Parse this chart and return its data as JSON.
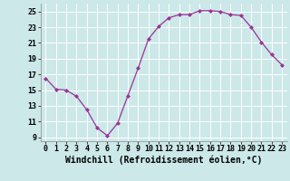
{
  "x": [
    0,
    1,
    2,
    3,
    4,
    5,
    6,
    7,
    8,
    9,
    10,
    11,
    12,
    13,
    14,
    15,
    16,
    17,
    18,
    19,
    20,
    21,
    22,
    23
  ],
  "y": [
    16.5,
    15.1,
    15.0,
    14.2,
    12.5,
    10.2,
    9.2,
    10.8,
    14.3,
    17.8,
    21.5,
    23.1,
    24.2,
    24.6,
    24.6,
    25.1,
    25.1,
    25.0,
    24.6,
    24.5,
    23.0,
    21.1,
    19.5,
    18.2
  ],
  "xlabel": "Windchill (Refroidissement éolien,°C)",
  "ylim": [
    8.5,
    26.0
  ],
  "xlim": [
    -0.5,
    23.5
  ],
  "yticks": [
    9,
    11,
    13,
    15,
    17,
    19,
    21,
    23,
    25
  ],
  "xticks": [
    0,
    1,
    2,
    3,
    4,
    5,
    6,
    7,
    8,
    9,
    10,
    11,
    12,
    13,
    14,
    15,
    16,
    17,
    18,
    19,
    20,
    21,
    22,
    23
  ],
  "line_color": "#993399",
  "marker": "D",
  "marker_size": 2.0,
  "bg_color": "#cce8e8",
  "grid_color": "#b0d0d0",
  "xlabel_fontsize": 7.0,
  "tick_fontsize": 6.0,
  "fig_width": 3.2,
  "fig_height": 2.0,
  "dpi": 100
}
